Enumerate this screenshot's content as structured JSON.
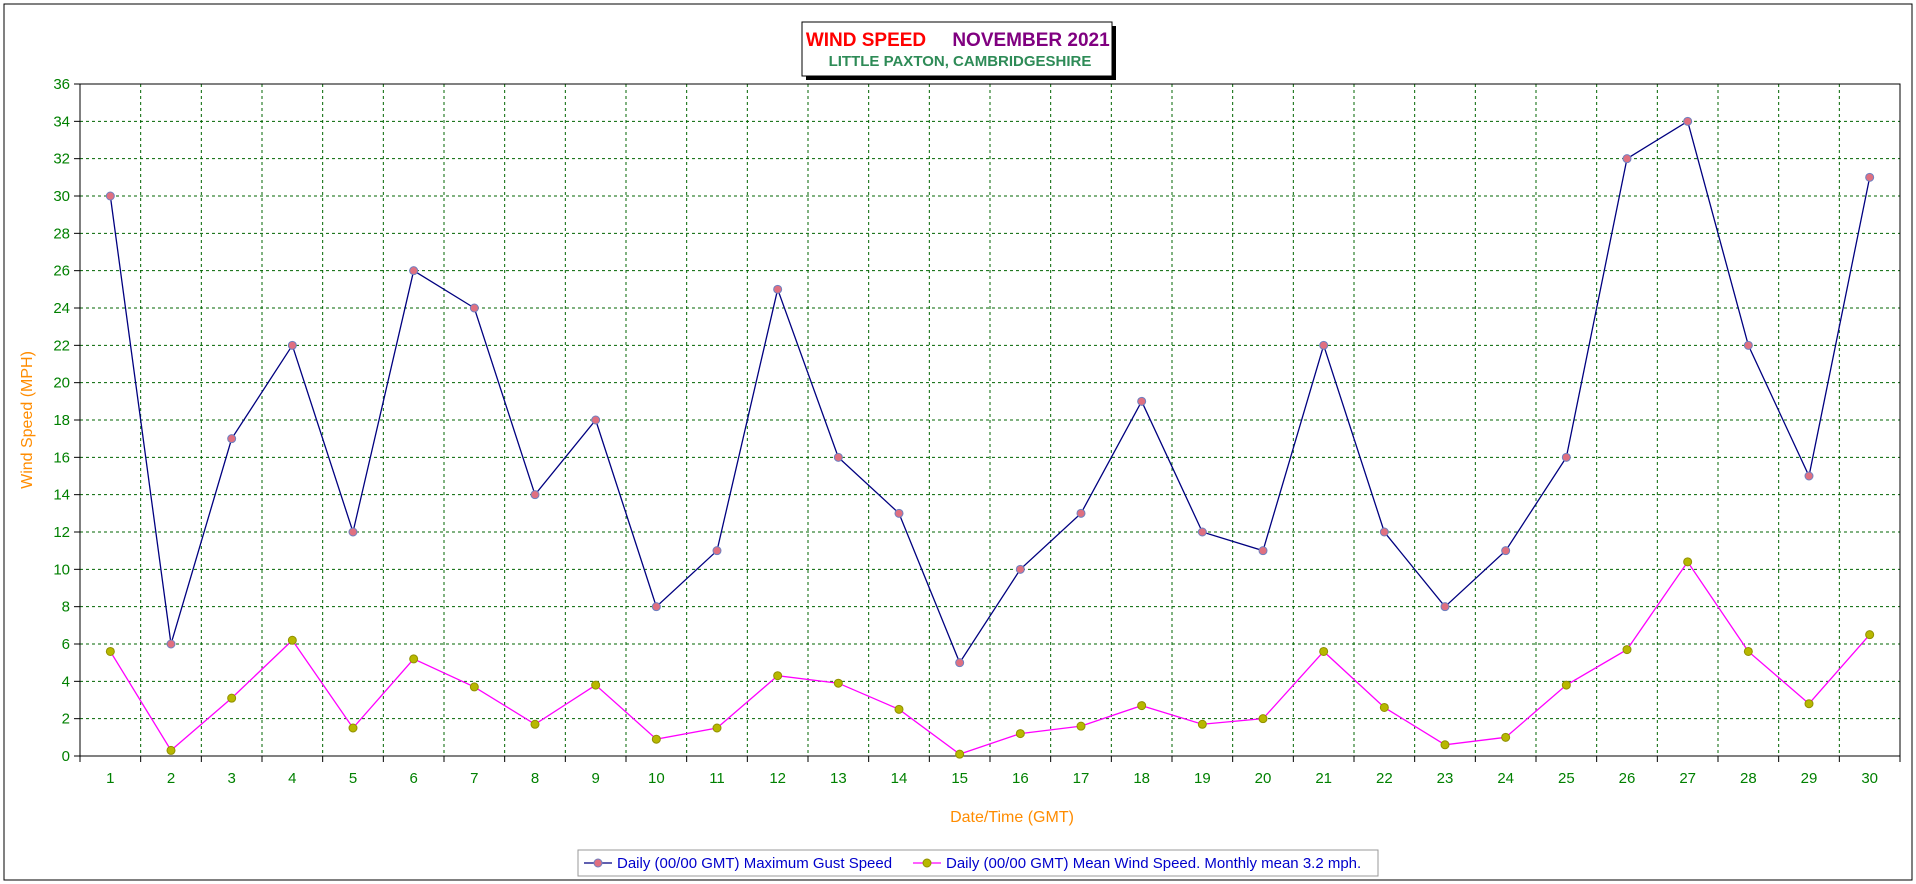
{
  "chart_data": {
    "type": "line",
    "title": {
      "part1": "WIND SPEED",
      "part2": "NOVEMBER 2021",
      "subtitle": "LITTLE PAXTON, CAMBRIDGESHIRE"
    },
    "xlabel": "Date/Time (GMT)",
    "ylabel": "Wind Speed (MPH)",
    "xlim": [
      1,
      30
    ],
    "ylim": [
      0,
      36
    ],
    "ytick_step": 2,
    "grid": true,
    "legend_position": "bottom-center",
    "x": [
      1,
      2,
      3,
      4,
      5,
      6,
      7,
      8,
      9,
      10,
      11,
      12,
      13,
      14,
      15,
      16,
      17,
      18,
      19,
      20,
      21,
      22,
      23,
      24,
      25,
      26,
      27,
      28,
      29,
      30
    ],
    "series": [
      {
        "name": "Daily (00/00 GMT) Maximum Gust Speed",
        "line_color": "#000080",
        "marker_color": "#e07080",
        "values": [
          30,
          6,
          17,
          22,
          12,
          26,
          24,
          14,
          18,
          8,
          11,
          25,
          16,
          13,
          5,
          10,
          13,
          19,
          12,
          11,
          22,
          12,
          8,
          11,
          16,
          32,
          34,
          22,
          15,
          31
        ]
      },
      {
        "name": "Daily (00/00 GMT) Mean Wind Speed. Monthly mean 3.2 mph.",
        "line_color": "#ff00ff",
        "marker_color": "#b8b800",
        "values": [
          5.6,
          0.3,
          3.1,
          6.2,
          1.5,
          5.2,
          3.7,
          1.7,
          3.8,
          0.9,
          1.5,
          4.3,
          3.9,
          2.5,
          0.1,
          1.2,
          1.6,
          2.7,
          1.7,
          2.0,
          5.6,
          2.6,
          0.6,
          1.0,
          3.8,
          5.7,
          10.4,
          5.6,
          2.8,
          6.5
        ]
      }
    ],
    "colors": {
      "title_part1": "#ff0000",
      "title_part2": "#800080",
      "subtitle": "#2e8b57",
      "tick_labels": "#008000",
      "axis_labels": "#ff8c00",
      "gridlines": "#006400",
      "legend_text": "#0000cc"
    }
  }
}
